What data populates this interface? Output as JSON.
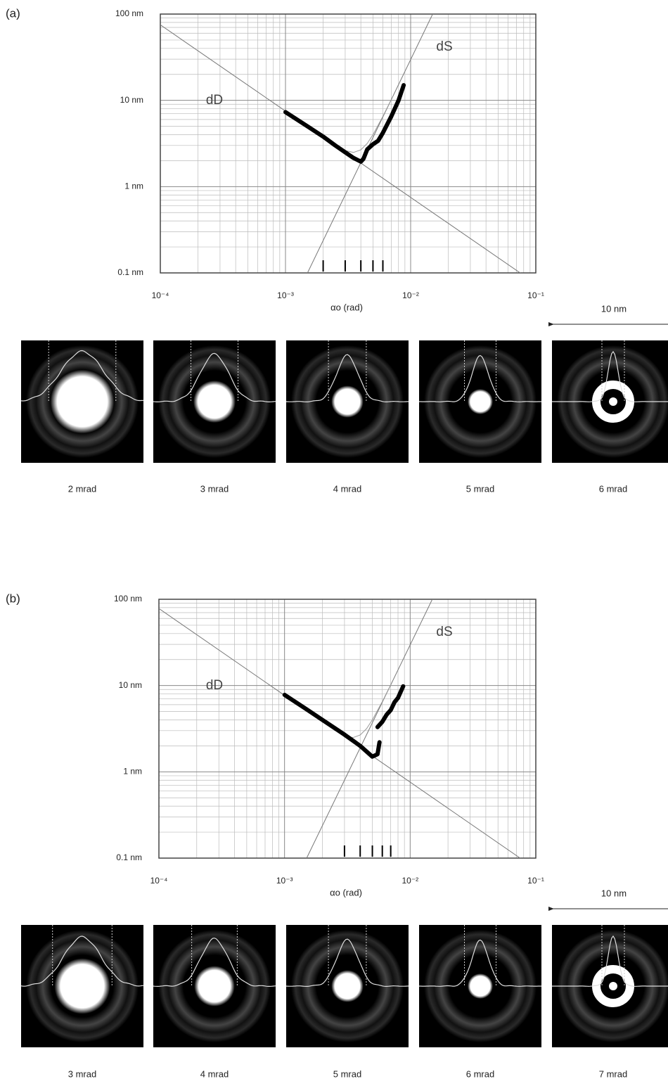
{
  "chart_data": [
    {
      "type": "line",
      "panel_label": "(a)",
      "xlabel": "αo (rad)",
      "log_x": true,
      "log_y": true,
      "grid": true,
      "minor_grid": true,
      "xlim": [
        0.0001,
        0.1
      ],
      "ylim": [
        0.1,
        100
      ],
      "xticks": [
        {
          "value": 0.0001,
          "label": "10⁻⁴"
        },
        {
          "value": 0.001,
          "label": "10⁻³"
        },
        {
          "value": 0.01,
          "label": "10⁻²"
        },
        {
          "value": 0.1,
          "label": "10⁻¹"
        }
      ],
      "yticks": [
        {
          "value": 0.1,
          "label": "0.1 nm"
        },
        {
          "value": 1,
          "label": "1 nm"
        },
        {
          "value": 10,
          "label": "10 nm"
        },
        {
          "value": 100,
          "label": "100 nm"
        }
      ],
      "series": [
        {
          "name": "dD",
          "color": "#777777",
          "linewidth": 1,
          "x": [
            0.0001,
            0.075
          ],
          "values": [
            75,
            0.1
          ]
        },
        {
          "name": "dS",
          "color": "#777777",
          "linewidth": 1,
          "x": [
            0.0015,
            0.015
          ],
          "values": [
            0.1,
            100
          ]
        },
        {
          "color": "#999999",
          "linewidth": 1,
          "x": [
            0.0025,
            0.003,
            0.0035,
            0.004,
            0.0045,
            0.005,
            0.006,
            0.007
          ],
          "values": [
            3.04,
            2.62,
            2.49,
            2.67,
            3.17,
            4.0,
            6.52,
            10.2
          ]
        },
        {
          "color": "#000000",
          "linewidth": 6,
          "x": [
            0.001,
            0.0015,
            0.002,
            0.0025,
            0.003,
            0.0035,
            0.004,
            0.0042,
            0.0045,
            0.005,
            0.0055,
            0.006,
            0.007,
            0.008,
            0.0088
          ],
          "values": [
            7.3,
            5.0,
            3.8,
            3.0,
            2.5,
            2.15,
            1.95,
            2.1,
            2.7,
            3.1,
            3.4,
            4.2,
            6.5,
            10,
            15
          ]
        }
      ],
      "scale_bar": "10 nm",
      "probes": [
        {
          "alpha": 0.002,
          "label": "2 mrad"
        },
        {
          "alpha": 0.003,
          "label": "3 mrad"
        },
        {
          "alpha": 0.004,
          "label": "4 mrad"
        },
        {
          "alpha": 0.005,
          "label": "5 mrad"
        },
        {
          "alpha": 0.006,
          "label": "6 mrad"
        }
      ]
    },
    {
      "type": "line",
      "panel_label": "(b)",
      "xlabel": "αo (rad)",
      "log_x": true,
      "log_y": true,
      "grid": true,
      "minor_grid": true,
      "xlim": [
        0.0001,
        0.1
      ],
      "ylim": [
        0.1,
        100
      ],
      "xticks": [
        {
          "value": 0.0001,
          "label": "10⁻⁴"
        },
        {
          "value": 0.001,
          "label": "10⁻³"
        },
        {
          "value": 0.01,
          "label": "10⁻²"
        },
        {
          "value": 0.1,
          "label": "10⁻¹"
        }
      ],
      "yticks": [
        {
          "value": 0.1,
          "label": "0.1 nm"
        },
        {
          "value": 1,
          "label": "1 nm"
        },
        {
          "value": 10,
          "label": "10 nm"
        },
        {
          "value": 100,
          "label": "100 nm"
        }
      ],
      "series": [
        {
          "name": "dD",
          "color": "#777777",
          "linewidth": 1,
          "x": [
            0.0001,
            0.075
          ],
          "values": [
            78,
            0.1
          ]
        },
        {
          "name": "dS",
          "color": "#777777",
          "linewidth": 1,
          "x": [
            0.0015,
            0.015
          ],
          "values": [
            0.1,
            100
          ]
        },
        {
          "color": "#999999",
          "linewidth": 1,
          "x": [
            0.0025,
            0.003,
            0.0035,
            0.004,
            0.0045,
            0.005,
            0.006,
            0.007
          ],
          "values": [
            3.04,
            2.62,
            2.49,
            2.67,
            3.17,
            4.0,
            6.52,
            10.2
          ]
        },
        {
          "color": "#000000",
          "linewidth": 6,
          "x": [
            0.001,
            0.0015,
            0.002,
            0.003,
            0.004,
            0.005,
            0.0055,
            0.0057,
            0.0058,
            0.0055,
            0.006,
            0.0065,
            0.007,
            0.0075,
            0.008,
            0.0088
          ],
          "values": [
            7.8,
            5.3,
            4.0,
            2.7,
            2.0,
            1.5,
            1.6,
            2.2,
            null,
            3.3,
            3.8,
            4.6,
            5.2,
            6.4,
            7.2,
            9.8
          ]
        }
      ],
      "scale_bar": "10 nm",
      "probes": [
        {
          "alpha": 0.003,
          "label": "3 mrad"
        },
        {
          "alpha": 0.004,
          "label": "4 mrad"
        },
        {
          "alpha": 0.005,
          "label": "5 mrad"
        },
        {
          "alpha": 0.006,
          "label": "6 mrad"
        },
        {
          "alpha": 0.007,
          "label": "7 mrad"
        }
      ]
    }
  ]
}
